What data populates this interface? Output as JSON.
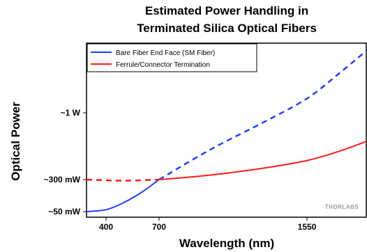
{
  "chart_data": {
    "type": "line",
    "title": [
      "Estimated Power Handling in",
      "Terminated Silica Optical Fibers"
    ],
    "xlabel": "Wavelength (nm)",
    "ylabel": "Optical Power",
    "x_ticks": [
      {
        "value": 400,
        "label": "400"
      },
      {
        "value": 700,
        "label": "700"
      },
      {
        "value": 1550,
        "label": "1550"
      }
    ],
    "y_ticks": [
      {
        "value": 50,
        "label": "~50 mW"
      },
      {
        "value": 300,
        "label": "~300 mW"
      },
      {
        "value": 1000,
        "label": "~1 W"
      }
    ],
    "xlim": [
      350,
      2000
    ],
    "y_scale": "piecewise (not to scale)",
    "legend_position": "top-left",
    "watermark": "THORLABS",
    "series": [
      {
        "name": "Bare Fiber End Face (SM Fiber)",
        "color": "#1f3fff",
        "solid": [
          [
            350,
            50
          ],
          [
            400,
            65
          ],
          [
            500,
            120
          ],
          [
            600,
            200
          ],
          [
            700,
            300
          ]
        ],
        "dashed": [
          [
            700,
            300
          ],
          [
            1000,
            620
          ],
          [
            1300,
            900
          ],
          [
            1550,
            1150
          ],
          [
            1800,
            1420
          ],
          [
            2000,
            1650
          ]
        ]
      },
      {
        "name": "Ferrule/Connector Termination",
        "color": "#ff1a1a",
        "dashed": [
          [
            350,
            300
          ],
          [
            500,
            292
          ],
          [
            700,
            300
          ]
        ],
        "solid": [
          [
            700,
            300
          ],
          [
            900,
            330
          ],
          [
            1100,
            370
          ],
          [
            1300,
            420
          ],
          [
            1550,
            500
          ],
          [
            1800,
            600
          ],
          [
            2000,
            700
          ]
        ]
      }
    ]
  }
}
